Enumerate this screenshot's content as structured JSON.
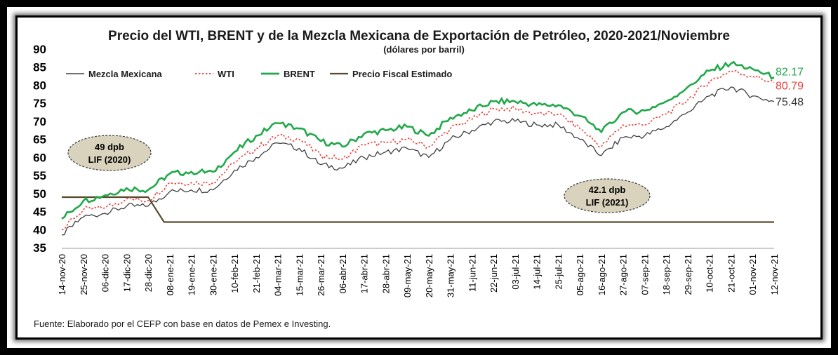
{
  "chart_data": {
    "type": "line",
    "title": "Precio del WTI, BRENT y de la Mezcla Mexicana de Exportación de Petróleo, 2020-2021/Noviembre",
    "subtitle": "(dólares por barril)",
    "ylim": [
      35,
      90
    ],
    "yticks": [
      "35",
      "40",
      "45",
      "50",
      "55",
      "60",
      "65",
      "70",
      "75",
      "80",
      "85",
      "90"
    ],
    "xticks": [
      "14-nov-20",
      "25-nov-20",
      "06-dic-20",
      "17-dic-20",
      "28-dic-20",
      "08-ene-21",
      "19-ene-21",
      "30-ene-21",
      "10-feb-21",
      "21-feb-21",
      "04-mar-21",
      "15-mar-21",
      "26-mar-21",
      "06-abr-21",
      "17-abr-21",
      "28-abr-21",
      "09-may-21",
      "20-may-21",
      "31-may-21",
      "11-jun-21",
      "22-jun-21",
      "03-jul-21",
      "14-jul-21",
      "25-jul-21",
      "05-ago-21",
      "16-ago-21",
      "27-ago-21",
      "07-sep-21",
      "18-sep-21",
      "29-sep-21",
      "10-oct-21",
      "21-oct-21",
      "01-nov-21",
      "12-nov-21"
    ],
    "legend": [
      "Mezcla Mexicana",
      "WTI",
      "BRENT",
      "Precio Fiscal Estimado"
    ],
    "colors": {
      "mezcla": "#404040",
      "wti": "#e8413c",
      "brent": "#22a84a",
      "fiscal": "#5a4a2c"
    },
    "series": [
      {
        "name": "BRENT",
        "x": [
          "14-nov-20",
          "25-nov-20",
          "06-dic-20",
          "17-dic-20",
          "28-dic-20",
          "08-ene-21",
          "19-ene-21",
          "30-ene-21",
          "10-feb-21",
          "21-feb-21",
          "04-mar-21",
          "15-mar-21",
          "26-mar-21",
          "06-abr-21",
          "17-abr-21",
          "28-abr-21",
          "09-may-21",
          "20-may-21",
          "31-may-21",
          "11-jun-21",
          "22-jun-21",
          "03-jul-21",
          "14-jul-21",
          "25-jul-21",
          "05-ago-21",
          "16-ago-21",
          "27-ago-21",
          "07-sep-21",
          "18-sep-21",
          "29-sep-21",
          "10-oct-21",
          "21-oct-21",
          "01-nov-21",
          "12-nov-21"
        ],
        "values": [
          43.0,
          48.0,
          49.5,
          51.5,
          51.0,
          55.5,
          56.0,
          56.0,
          61.5,
          66.0,
          69.5,
          68.0,
          64.5,
          63.0,
          66.5,
          67.5,
          68.5,
          66.0,
          71.0,
          73.0,
          75.5,
          75.5,
          74.5,
          74.5,
          71.5,
          67.0,
          72.5,
          73.0,
          75.5,
          79.5,
          84.0,
          86.0,
          84.5,
          82.17
        ]
      },
      {
        "name": "WTI",
        "x": [
          "14-nov-20",
          "25-nov-20",
          "06-dic-20",
          "17-dic-20",
          "28-dic-20",
          "08-ene-21",
          "19-ene-21",
          "30-ene-21",
          "10-feb-21",
          "21-feb-21",
          "04-mar-21",
          "15-mar-21",
          "26-mar-21",
          "06-abr-21",
          "17-abr-21",
          "28-abr-21",
          "09-may-21",
          "20-may-21",
          "31-may-21",
          "11-jun-21",
          "22-jun-21",
          "03-jul-21",
          "14-jul-21",
          "25-jul-21",
          "05-ago-21",
          "16-ago-21",
          "27-ago-21",
          "07-sep-21",
          "18-sep-21",
          "29-sep-21",
          "10-oct-21",
          "21-oct-21",
          "01-nov-21",
          "12-nov-21"
        ],
        "values": [
          40.0,
          45.5,
          46.0,
          48.5,
          48.0,
          53.0,
          53.0,
          53.0,
          58.5,
          62.5,
          66.0,
          65.0,
          60.5,
          59.5,
          63.5,
          64.0,
          65.0,
          63.0,
          68.0,
          70.5,
          73.5,
          73.5,
          72.0,
          72.0,
          68.0,
          63.0,
          69.0,
          69.0,
          72.0,
          76.0,
          81.0,
          84.0,
          82.5,
          80.79
        ]
      },
      {
        "name": "Mezcla Mexicana",
        "x": [
          "14-nov-20",
          "25-nov-20",
          "06-dic-20",
          "17-dic-20",
          "28-dic-20",
          "08-ene-21",
          "19-ene-21",
          "30-ene-21",
          "10-feb-21",
          "21-feb-21",
          "04-mar-21",
          "15-mar-21",
          "26-mar-21",
          "06-abr-21",
          "17-abr-21",
          "28-abr-21",
          "09-may-21",
          "20-may-21",
          "31-may-21",
          "11-jun-21",
          "22-jun-21",
          "03-jul-21",
          "14-jul-21",
          "25-jul-21",
          "05-ago-21",
          "16-ago-21",
          "27-ago-21",
          "07-sep-21",
          "18-sep-21",
          "29-sep-21",
          "10-oct-21",
          "21-oct-21",
          "01-nov-21",
          "12-nov-21"
        ],
        "values": [
          38.5,
          43.5,
          44.5,
          46.5,
          46.5,
          50.5,
          51.0,
          51.0,
          56.5,
          60.0,
          64.0,
          62.5,
          58.0,
          57.0,
          60.0,
          61.5,
          62.5,
          60.0,
          65.0,
          67.5,
          70.0,
          70.0,
          69.0,
          69.0,
          65.0,
          60.5,
          65.5,
          66.0,
          68.5,
          72.5,
          77.0,
          79.5,
          77.0,
          75.48
        ]
      },
      {
        "name": "Precio Fiscal Estimado",
        "x": [
          "14-nov-20",
          "28-dic-20",
          "08-ene-21",
          "12-nov-21"
        ],
        "values": [
          49,
          49,
          42.1,
          42.1
        ]
      }
    ],
    "end_labels": {
      "brent": "82.17",
      "wti": "80.79",
      "mezcla": "75.48"
    },
    "annotations": [
      {
        "line1": "49 dpb",
        "line2": "LIF (2020)"
      },
      {
        "line1": "42.1 dpb",
        "line2": "LIF (2021)"
      }
    ]
  },
  "source": "Fuente: Elaborado por el CEFP con base en datos de Pemex e Investing."
}
